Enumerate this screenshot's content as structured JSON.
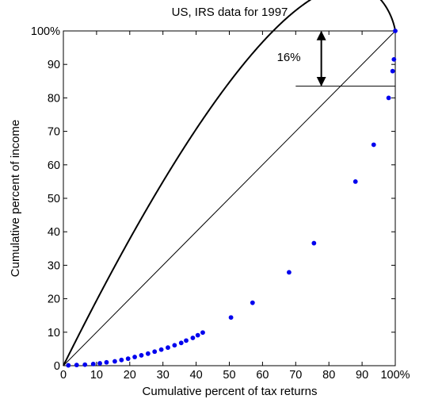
{
  "chart_data": {
    "type": "scatter",
    "title": "US, IRS data for 1997",
    "xlabel": "Cumulative percent of tax returns",
    "ylabel": "Cumulative percent of income",
    "xlim": [
      0,
      100
    ],
    "ylim": [
      0,
      100
    ],
    "xticks": [
      "0",
      "10",
      "20",
      "30",
      "40",
      "50",
      "60",
      "70",
      "80",
      "90",
      "100%"
    ],
    "yticks": [
      "0",
      "10",
      "20",
      "30",
      "40",
      "50",
      "60",
      "70",
      "80",
      "90",
      "100%"
    ],
    "grid": false,
    "series": [
      {
        "kind": "points",
        "color": "#0000ee",
        "x": [
          1.5,
          4,
          6.5,
          9,
          11,
          13,
          15.5,
          17.5,
          19.5,
          21.5,
          23.5,
          25.5,
          27.5,
          29.5,
          31.5,
          33.5,
          35.5,
          37,
          39,
          40.5,
          42,
          50.5,
          57,
          68,
          75.5,
          88,
          93.5,
          98,
          99.2,
          99.6,
          100
        ],
        "y": [
          0.1,
          0.2,
          0.3,
          0.5,
          0.7,
          1.0,
          1.3,
          1.7,
          2.1,
          2.6,
          3.1,
          3.6,
          4.2,
          4.8,
          5.4,
          6.1,
          6.8,
          7.5,
          8.3,
          9.1,
          9.9,
          14.4,
          18.8,
          27.9,
          36.6,
          55,
          66,
          80,
          88,
          91.5,
          100
        ]
      },
      {
        "kind": "curve",
        "color": "#000000",
        "description_source": "exponential Lorenz curve L(p)=p-(1-p)ln(1-p)"
      },
      {
        "kind": "diagonal",
        "color": "#000000",
        "x": [
          0,
          100
        ],
        "y": [
          0,
          100
        ]
      }
    ],
    "annotations": [
      {
        "text": "16%",
        "arrow_from": 100,
        "arrow_to": 83.5,
        "at_x": 77
      },
      {
        "kind": "hline",
        "y": 83.5,
        "x_from": 70,
        "x_to": 100
      }
    ]
  }
}
